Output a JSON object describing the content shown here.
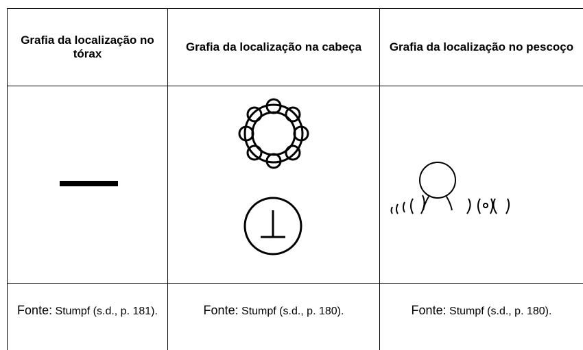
{
  "table": {
    "header": [
      "Grafia da localização no tórax",
      "Grafia da localização na cabeça",
      "Grafia da localização no pescoço"
    ],
    "footer": [
      {
        "label": "Fonte:",
        "source": "Stumpf (s.d., p. 181)."
      },
      {
        "label": "Fonte:",
        "source": "Stumpf (s.d., p. 180)."
      },
      {
        "label": "Fonte:",
        "source": "Stumpf (s.d., p. 180)."
      }
    ]
  }
}
